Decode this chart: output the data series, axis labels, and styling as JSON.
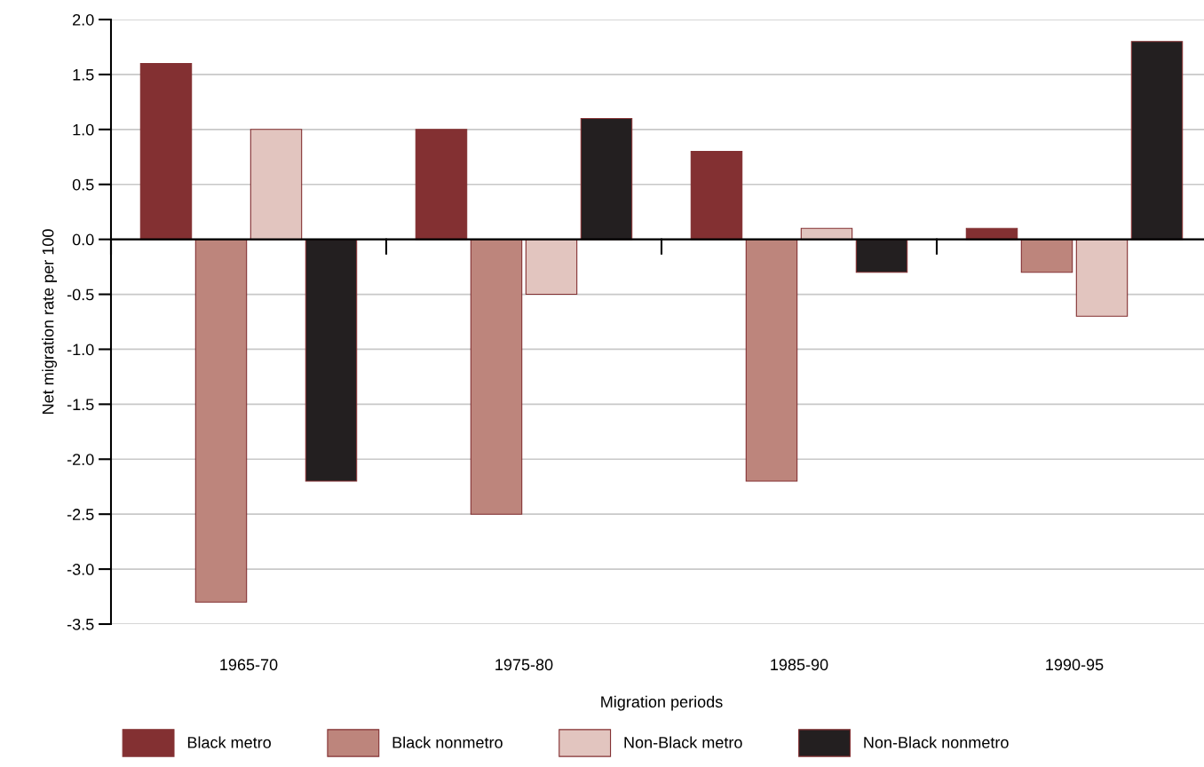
{
  "chart_data": {
    "type": "bar",
    "xlabel": "Migration periods",
    "ylabel": "Net migration rate per 100",
    "categories": [
      "1965-70",
      "1975-80",
      "1985-90",
      "1990-95"
    ],
    "series": [
      {
        "name": "Black metro",
        "color": "#833032",
        "values": [
          1.6,
          1.0,
          0.8,
          0.1
        ]
      },
      {
        "name": "Black nonmetro",
        "color": "#bd857c",
        "values": [
          -3.3,
          -2.5,
          -2.2,
          -0.3
        ]
      },
      {
        "name": "Non-Black metro",
        "color": "#e2c5bf",
        "values": [
          1.0,
          -0.5,
          0.1,
          -0.7
        ]
      },
      {
        "name": "Non-Black nonmetro",
        "color": "#231f20",
        "values": [
          -2.2,
          1.1,
          -0.3,
          1.8
        ]
      }
    ],
    "ylim": [
      -3.5,
      2.0
    ],
    "yticks": [
      {
        "value": -3.5,
        "label": "-3.5"
      },
      {
        "value": -3.0,
        "label": "-3.0"
      },
      {
        "value": -2.5,
        "label": "-2.5"
      },
      {
        "value": -2.0,
        "label": "-2.0"
      },
      {
        "value": -1.5,
        "label": "-1.5"
      },
      {
        "value": -1.0,
        "label": "-1.0"
      },
      {
        "value": -0.5,
        "label": "-0.5"
      },
      {
        "value": 0.0,
        "label": "0.0"
      },
      {
        "value": 0.5,
        "label": "0.5"
      },
      {
        "value": 1.0,
        "label": "1.0"
      },
      {
        "value": 1.5,
        "label": "1.5"
      },
      {
        "value": 2.0,
        "label": "2.0"
      }
    ],
    "grid": "y",
    "legend": "bottom"
  }
}
